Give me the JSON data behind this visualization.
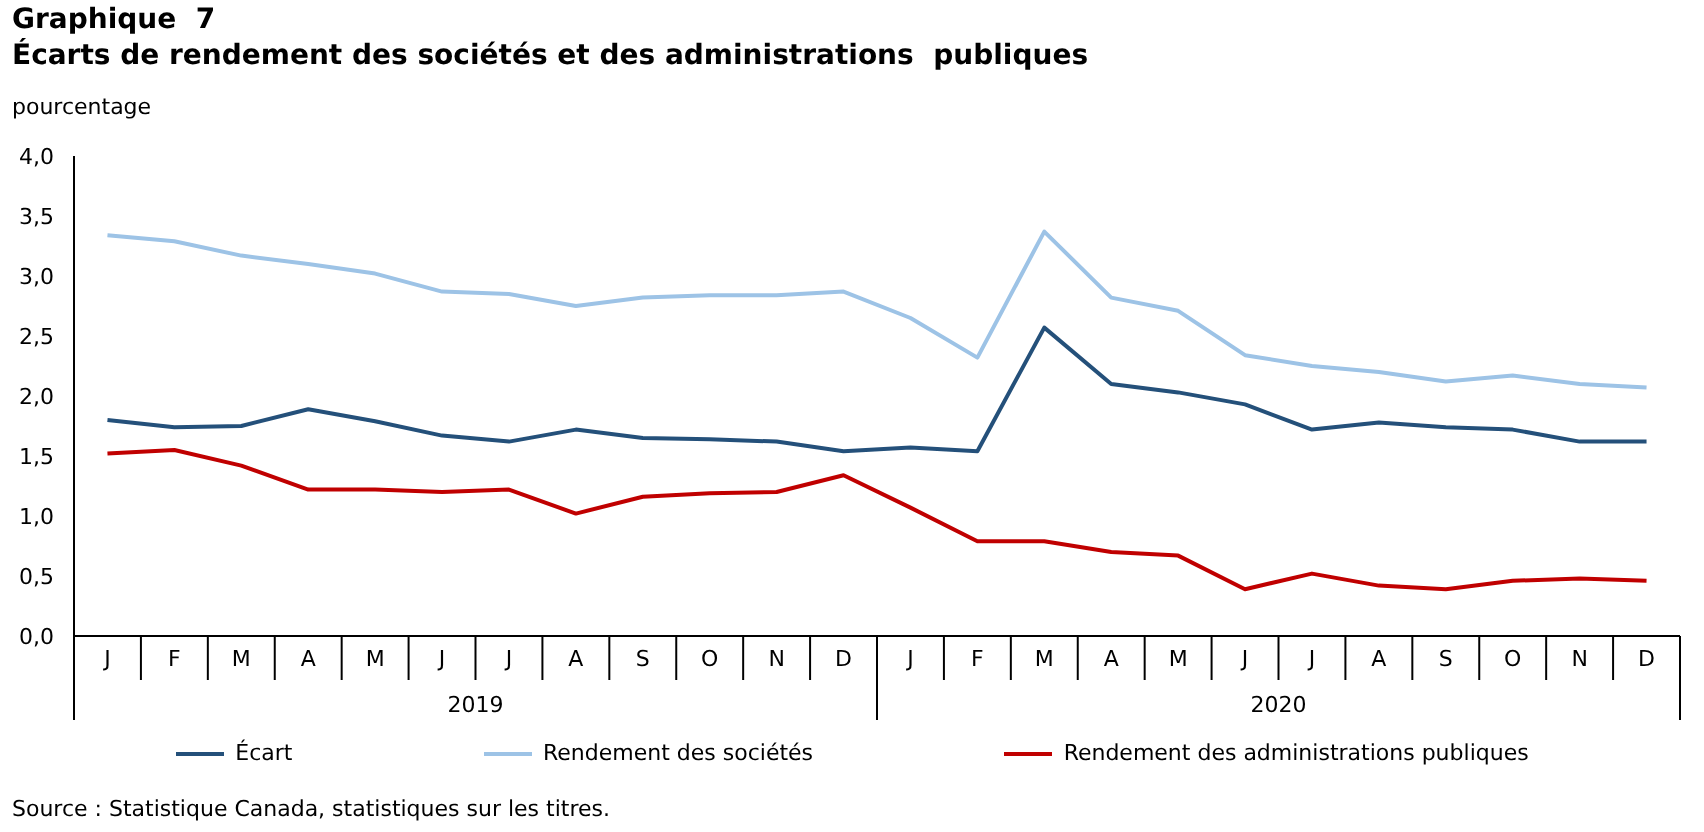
{
  "chart_data": {
    "type": "line",
    "title": "Graphique  7",
    "subtitle": "Écarts de rendement des sociétés et des administrations  publiques",
    "ylabel": "pourcentage",
    "categories": [
      "J",
      "F",
      "M",
      "A",
      "M",
      "J",
      "J",
      "A",
      "S",
      "O",
      "N",
      "D",
      "J",
      "F",
      "M",
      "A",
      "M",
      "J",
      "J",
      "A",
      "S",
      "O",
      "N",
      "D"
    ],
    "series": [
      {
        "name": "Écart",
        "color": "#24507a",
        "values": [
          1.8,
          1.74,
          1.75,
          1.89,
          1.79,
          1.67,
          1.62,
          1.72,
          1.65,
          1.64,
          1.62,
          1.54,
          1.57,
          1.54,
          2.57,
          2.1,
          2.03,
          1.93,
          1.72,
          1.78,
          1.74,
          1.72,
          1.62,
          1.62
        ]
      },
      {
        "name": "Rendement des sociétés",
        "color": "#9dc3e6",
        "values": [
          3.34,
          3.29,
          3.17,
          3.1,
          3.02,
          2.87,
          2.85,
          2.75,
          2.82,
          2.84,
          2.84,
          2.87,
          2.65,
          2.32,
          3.37,
          2.82,
          2.71,
          2.34,
          2.25,
          2.2,
          2.12,
          2.17,
          2.1,
          2.07
        ]
      },
      {
        "name": "Rendement des administrations publiques",
        "color": "#c00000",
        "values": [
          1.52,
          1.55,
          1.42,
          1.22,
          1.22,
          1.2,
          1.22,
          1.02,
          1.16,
          1.19,
          1.2,
          1.34,
          1.07,
          0.79,
          0.79,
          0.7,
          0.67,
          0.39,
          0.52,
          0.42,
          0.39,
          0.46,
          0.48,
          0.46
        ]
      }
    ],
    "ylim": [
      0,
      4
    ],
    "yticks": [
      {
        "value": 0,
        "label": "0,0"
      },
      {
        "value": 0.5,
        "label": "0,5"
      },
      {
        "value": 1,
        "label": "1,0"
      },
      {
        "value": 1.5,
        "label": "1,5"
      },
      {
        "value": 2,
        "label": "2,0"
      },
      {
        "value": 2.5,
        "label": "2,5"
      },
      {
        "value": 3,
        "label": "3,0"
      },
      {
        "value": 3.5,
        "label": "3,5"
      },
      {
        "value": 4,
        "label": "4,0"
      }
    ],
    "grid": false,
    "legend": "bottom",
    "marker": "none",
    "line_style": "solid",
    "annotations": [
      "2019",
      "2020",
      "Source : Statistique Canada, statistiques sur les titres."
    ]
  }
}
